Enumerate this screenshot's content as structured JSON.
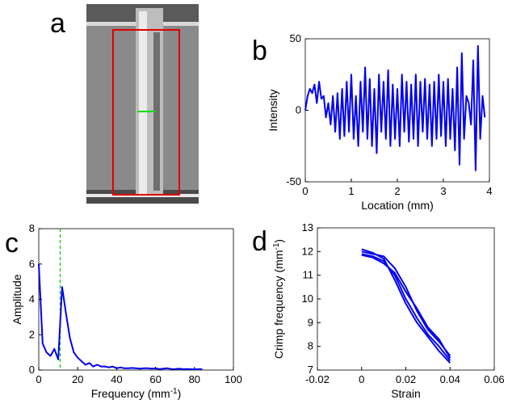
{
  "image_panel": {
    "label": "a"
  },
  "chart_data": [
    {
      "type": "line",
      "label": "b",
      "xlabel": "Location (mm)",
      "ylabel": "Intensity",
      "xlim": [
        0,
        4
      ],
      "xticks": [
        0,
        1,
        2,
        3,
        4
      ],
      "ylim": [
        -50,
        50
      ],
      "yticks": [
        -50,
        0,
        50
      ],
      "color": "#0000ee",
      "x": [
        0,
        0.05,
        0.1,
        0.15,
        0.2,
        0.25,
        0.3,
        0.35,
        0.4,
        0.45,
        0.5,
        0.55,
        0.6,
        0.65,
        0.7,
        0.75,
        0.8,
        0.85,
        0.9,
        0.95,
        1,
        1.05,
        1.1,
        1.15,
        1.2,
        1.25,
        1.3,
        1.35,
        1.4,
        1.45,
        1.5,
        1.55,
        1.6,
        1.65,
        1.7,
        1.75,
        1.8,
        1.85,
        1.9,
        1.95,
        2,
        2.05,
        2.1,
        2.15,
        2.2,
        2.25,
        2.3,
        2.35,
        2.4,
        2.45,
        2.5,
        2.55,
        2.6,
        2.65,
        2.7,
        2.75,
        2.8,
        2.85,
        2.9,
        2.95,
        3,
        3.05,
        3.1,
        3.15,
        3.2,
        3.25,
        3.3,
        3.35,
        3.4,
        3.45,
        3.5,
        3.55,
        3.6,
        3.65,
        3.7,
        3.75,
        3.8,
        3.85,
        3.9
      ],
      "series": [
        {
          "color": "#0000ee",
          "values": [
            0,
            10,
            15,
            12,
            18,
            5,
            20,
            8,
            10,
            -5,
            5,
            -10,
            10,
            -15,
            12,
            -20,
            15,
            -18,
            20,
            -15,
            25,
            -20,
            10,
            -25,
            20,
            -15,
            30,
            -20,
            22,
            -25,
            15,
            -30,
            25,
            -15,
            20,
            -20,
            28,
            -25,
            18,
            -20,
            15,
            -25,
            25,
            -15,
            20,
            -22,
            18,
            -20,
            25,
            -25,
            20,
            -15,
            22,
            -20,
            18,
            -25,
            20,
            -20,
            25,
            -18,
            20,
            -25,
            22,
            -20,
            15,
            -28,
            30,
            -38,
            40,
            -20,
            10,
            5,
            -10,
            35,
            -42,
            45,
            -20,
            10,
            -5
          ]
        }
      ]
    },
    {
      "type": "line",
      "label": "c",
      "xlabel": [
        "Frequency (mm",
        "-1",
        ")"
      ],
      "ylabel": "Amplitude",
      "xlim": [
        0,
        100
      ],
      "xticks": [
        0,
        20,
        40,
        60,
        80,
        100
      ],
      "ylim": [
        0,
        8
      ],
      "yticks": [
        0,
        2,
        4,
        6,
        8
      ],
      "ref_x": 11,
      "ref_color": "#00cc00",
      "x": [
        0,
        2,
        4,
        6,
        8,
        10,
        12,
        14,
        16,
        18,
        20,
        22,
        24,
        26,
        28,
        30,
        32,
        34,
        36,
        38,
        40,
        42,
        44,
        46,
        48,
        50,
        52,
        54,
        56,
        58,
        60,
        62,
        64,
        66,
        68,
        70,
        72,
        74,
        76,
        78,
        80,
        82,
        84
      ],
      "series": [
        {
          "color": "#0000ee",
          "values": [
            6,
            1.5,
            1,
            0.8,
            1.2,
            0.6,
            4.7,
            3.2,
            1.8,
            1,
            0.7,
            0.5,
            0.3,
            0.4,
            0.2,
            0.3,
            0.2,
            0.2,
            0.15,
            0.2,
            0.1,
            0.15,
            0.1,
            0.1,
            0.12,
            0.1,
            0.08,
            0.1,
            0.1,
            0.08,
            0.1,
            0.05,
            0.08,
            0.1,
            0.06,
            0.05,
            0.08,
            0.05,
            0.06,
            0.05,
            0.04,
            0.05,
            0.05
          ]
        }
      ]
    },
    {
      "type": "line",
      "label": "d",
      "xlabel": "Strain",
      "ylabel": [
        "Crimp frequency (mm",
        "-1",
        ")"
      ],
      "xlim": [
        -0.02,
        0.06
      ],
      "xticks": [
        -0.02,
        0,
        0.02,
        0.04,
        0.06
      ],
      "ylim": [
        7,
        13
      ],
      "yticks": [
        7,
        8,
        9,
        10,
        11,
        12,
        13
      ],
      "x": [
        0,
        0.005,
        0.01,
        0.015,
        0.02,
        0.025,
        0.03,
        0.035,
        0.04
      ],
      "series": [
        {
          "color": "#0000ee",
          "values": [
            12,
            11.9,
            11.8,
            11.3,
            10.5,
            9.5,
            8.7,
            8.2,
            7.6
          ]
        },
        {
          "color": "#0000ee",
          "values": [
            11.9,
            11.8,
            11.6,
            11,
            10,
            9.2,
            8.5,
            8,
            7.4
          ]
        },
        {
          "color": "#0000ee",
          "values": [
            12.1,
            11.95,
            11.7,
            10.8,
            9.8,
            9,
            8.4,
            7.8,
            7.3
          ]
        },
        {
          "color": "#0000ee",
          "values": [
            11.85,
            11.75,
            11.5,
            11.1,
            10.3,
            9.6,
            8.8,
            8.3,
            7.5
          ]
        }
      ]
    }
  ]
}
